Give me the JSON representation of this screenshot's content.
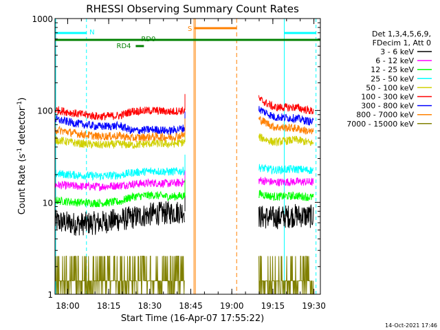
{
  "chart_data": {
    "type": "line",
    "title": "RHESSI Observing Summary Count Rates",
    "xlabel": "Start Time (16-Apr-07 17:55:22)",
    "ylabel_main": "Count Rate (s",
    "ylabel_sup1": "-1",
    "ylabel_mid": " detector",
    "ylabel_sup2": "-1",
    "ylabel_end": ")",
    "yscale": "log",
    "ylim": [
      1,
      1000
    ],
    "xlim_minutes": [
      0,
      97
    ],
    "x_ticks": [
      {
        "label": "18:00",
        "t": 4.63
      },
      {
        "label": "18:15",
        "t": 19.63
      },
      {
        "label": "18:30",
        "t": 34.63
      },
      {
        "label": "18:45",
        "t": 49.63
      },
      {
        "label": "19:00",
        "t": 64.63
      },
      {
        "label": "19:15",
        "t": 79.63
      },
      {
        "label": "19:30",
        "t": 94.63
      }
    ],
    "y_ticks": [
      {
        "label": "1",
        "v": 1
      },
      {
        "label": "10",
        "v": 10
      },
      {
        "label": "100",
        "v": 100
      },
      {
        "label": "1000",
        "v": 1000
      }
    ],
    "legend_header": [
      "Det 1,3,4,5,6,9,",
      "FDecim 1, Att 0"
    ],
    "series": [
      {
        "name": "3 - 6 keV",
        "color": "#000000",
        "points": [
          [
            0,
            6.2
          ],
          [
            8,
            5.8
          ],
          [
            16,
            6.0
          ],
          [
            24,
            6.5
          ],
          [
            28,
            6.8
          ],
          [
            36,
            7.5
          ],
          [
            42,
            7.7
          ],
          [
            47,
            8.0
          ],
          [
            74,
            7.0
          ],
          [
            80,
            6.8
          ],
          [
            88,
            7.2
          ],
          [
            94,
            7.0
          ]
        ]
      },
      {
        "name": "6 - 12 keV",
        "color": "#ff00ff",
        "points": [
          [
            0,
            15.5
          ],
          [
            8,
            15.0
          ],
          [
            16,
            14.8
          ],
          [
            24,
            15.3
          ],
          [
            28,
            15.8
          ],
          [
            36,
            16.3
          ],
          [
            42,
            16.0
          ],
          [
            47,
            16.5
          ],
          [
            74,
            17.5
          ],
          [
            80,
            16.5
          ],
          [
            88,
            16.8
          ],
          [
            94,
            16.6
          ]
        ]
      },
      {
        "name": "12 - 25 keV",
        "color": "#00ff00",
        "points": [
          [
            0,
            10.5
          ],
          [
            8,
            10.0
          ],
          [
            16,
            9.8
          ],
          [
            24,
            10.2
          ],
          [
            28,
            11.5
          ],
          [
            36,
            12.0
          ],
          [
            42,
            11.5
          ],
          [
            47,
            11.8
          ],
          [
            74,
            12.5
          ],
          [
            80,
            11.5
          ],
          [
            88,
            11.8
          ],
          [
            94,
            11.3
          ]
        ]
      },
      {
        "name": "25 - 50 keV",
        "color": "#00ffff",
        "points": [
          [
            0,
            20.5
          ],
          [
            8,
            19.8
          ],
          [
            16,
            19.3
          ],
          [
            24,
            19.8
          ],
          [
            28,
            21.0
          ],
          [
            36,
            22.0
          ],
          [
            42,
            21.5
          ],
          [
            47,
            22.0
          ],
          [
            74,
            24.0
          ],
          [
            80,
            22.5
          ],
          [
            88,
            23.0
          ],
          [
            94,
            22.3
          ]
        ]
      },
      {
        "name": "50 - 100 keV",
        "color": "#d0d000",
        "points": [
          [
            0,
            48
          ],
          [
            8,
            44
          ],
          [
            16,
            42
          ],
          [
            24,
            43
          ],
          [
            28,
            42
          ],
          [
            36,
            44
          ],
          [
            42,
            43
          ],
          [
            47,
            45
          ],
          [
            74,
            52
          ],
          [
            80,
            45
          ],
          [
            88,
            48
          ],
          [
            94,
            44
          ]
        ]
      },
      {
        "name": "100 - 300 keV",
        "color": "#ff0000",
        "points": [
          [
            0,
            102
          ],
          [
            8,
            92
          ],
          [
            16,
            86
          ],
          [
            24,
            88
          ],
          [
            28,
            98
          ],
          [
            36,
            100
          ],
          [
            42,
            97
          ],
          [
            47,
            100
          ],
          [
            74,
            135
          ],
          [
            80,
            108
          ],
          [
            88,
            108
          ],
          [
            94,
            98
          ]
        ]
      },
      {
        "name": "300 - 800 keV",
        "color": "#0000ff",
        "points": [
          [
            0,
            80
          ],
          [
            8,
            72
          ],
          [
            16,
            67
          ],
          [
            24,
            68
          ],
          [
            28,
            60
          ],
          [
            36,
            62
          ],
          [
            42,
            60
          ],
          [
            47,
            64
          ],
          [
            74,
            105
          ],
          [
            80,
            85
          ],
          [
            88,
            82
          ],
          [
            94,
            75
          ]
        ]
      },
      {
        "name": "800 - 7000 keV",
        "color": "#ff8000",
        "points": [
          [
            0,
            62
          ],
          [
            8,
            56
          ],
          [
            16,
            52
          ],
          [
            24,
            53
          ],
          [
            28,
            50
          ],
          [
            36,
            52
          ],
          [
            42,
            51
          ],
          [
            47,
            54
          ],
          [
            74,
            82
          ],
          [
            80,
            66
          ],
          [
            88,
            64
          ],
          [
            94,
            58
          ]
        ]
      },
      {
        "name": "7000 - 15000 keV",
        "color": "#808000",
        "points": [
          [
            0,
            1.5
          ],
          [
            8,
            1.5
          ],
          [
            16,
            1.5
          ],
          [
            24,
            1.5
          ],
          [
            28,
            1.8
          ],
          [
            36,
            1.6
          ],
          [
            42,
            1.7
          ],
          [
            47,
            1.7
          ],
          [
            74,
            1.8
          ],
          [
            80,
            1.6
          ],
          [
            88,
            1.7
          ],
          [
            94,
            1.5
          ]
        ]
      }
    ],
    "annotations": {
      "night_label": "N",
      "saa_label": "S",
      "rd0_label": "RD0",
      "rd4_label": "RD4"
    },
    "footer_date": "14-Oct-2021 17:46"
  },
  "colors": {
    "night": "#00ffff",
    "saa": "#ff8000",
    "decimation": "#008000"
  }
}
